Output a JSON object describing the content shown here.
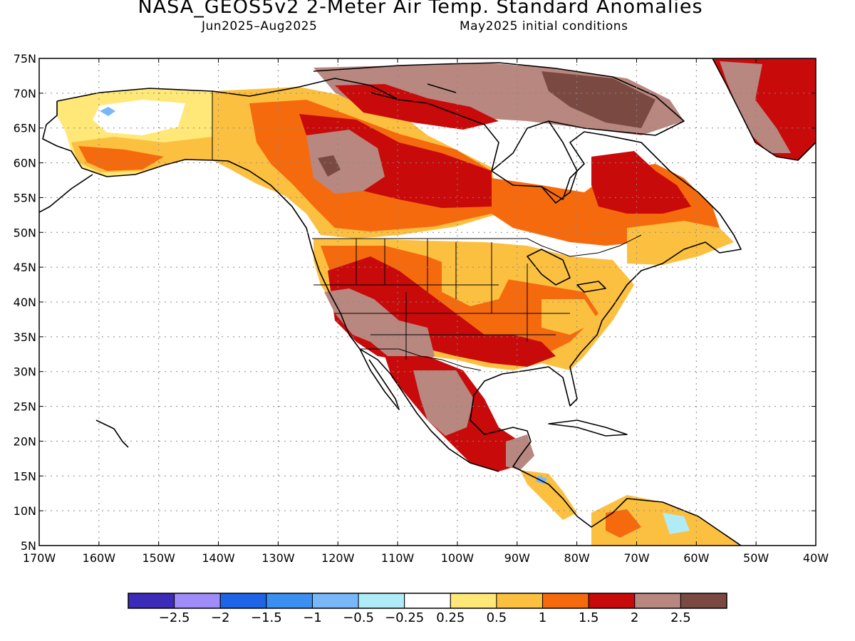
{
  "title": "NASA_GEOS5v2 2-Meter Air Temp. Standard Anomalies",
  "subtitle_left": "Jun2025–Aug2025",
  "subtitle_right": "May2025 initial conditions",
  "map": {
    "region": "North America",
    "lon_range": [
      -170,
      -40
    ],
    "lat_range": [
      5,
      75
    ],
    "grid": true,
    "lat_labels": [
      "75N",
      "70N",
      "65N",
      "60N",
      "55N",
      "50N",
      "45N",
      "40N",
      "35N",
      "30N",
      "25N",
      "20N",
      "15N",
      "10N",
      "5N"
    ],
    "lon_labels": [
      "170W",
      "160W",
      "150W",
      "140W",
      "130W",
      "120W",
      "110W",
      "100W",
      "90W",
      "80W",
      "70W",
      "60W",
      "50W",
      "40W"
    ]
  },
  "colorbar": {
    "colors": [
      "#3c2ab8",
      "#a08cf8",
      "#1e64e6",
      "#3a8ff0",
      "#78b8f8",
      "#b0ecf8",
      "#ffffff",
      "#ffe878",
      "#fcc040",
      "#f66a0e",
      "#c80a0a",
      "#b8877f",
      "#7a4a42"
    ],
    "labels": [
      "−2.5",
      "−2",
      "−1.5",
      "−1",
      "−0.5",
      "−0.25",
      "0.25",
      "0.5",
      "1",
      "1.5",
      "2",
      "2.5"
    ]
  }
}
